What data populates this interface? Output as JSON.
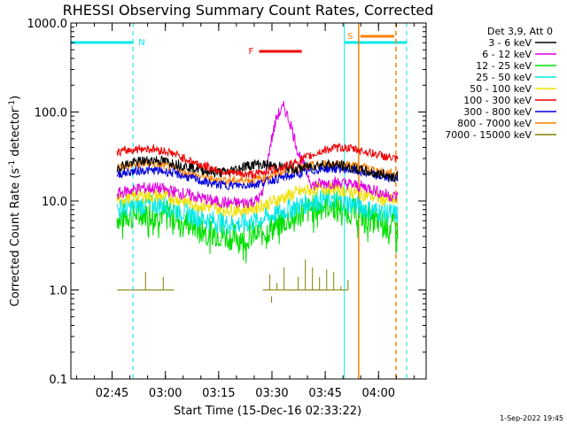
{
  "chart_data": {
    "type": "line",
    "title": "RHESSI Observing Summary Count Rates, Corrected",
    "xlabel": "Start Time (15-Dec-16 02:33:22)",
    "ylabel": "Corrected Count Rate (s-1 detector-1)",
    "ylabel_parts": {
      "main": "Corrected Count Rate (s",
      "sup1": "-1",
      "mid": " detector",
      "sup2": "-1",
      "end": ")"
    },
    "yscale": "log",
    "ylim": [
      0.1,
      1000
    ],
    "xlim_minutes": [
      0,
      100
    ],
    "x_ticks": [
      "02:45",
      "03:00",
      "03:15",
      "03:30",
      "03:45",
      "04:00"
    ],
    "y_ticks": [
      "0.1",
      "1.0",
      "10.0",
      "100.0",
      "1000.0"
    ],
    "legend_header": "Det 3,9, Att 0",
    "footer": "1-Sep-2022 19:45",
    "series": [
      {
        "name": "3 - 6 keV",
        "color": "#000000",
        "x": [
          13,
          16,
          20,
          24,
          28,
          32,
          36,
          40,
          44,
          48,
          52,
          56,
          60,
          64,
          68,
          72,
          76,
          80,
          84,
          86,
          88,
          90,
          92
        ],
        "y": [
          24,
          26,
          28,
          29,
          27,
          25,
          23,
          21,
          21,
          24,
          26,
          25,
          24,
          23,
          25,
          26,
          25,
          23,
          21,
          20,
          20,
          19,
          19
        ]
      },
      {
        "name": "6 - 12 keV",
        "color": "#e000e0",
        "x": [
          13,
          16,
          20,
          24,
          28,
          32,
          36,
          40,
          44,
          48,
          52,
          54,
          56,
          58,
          60,
          62,
          64,
          68,
          72,
          76,
          80,
          84,
          88,
          92
        ],
        "y": [
          12,
          13,
          14,
          14,
          13,
          12,
          11,
          10,
          9.5,
          9.5,
          10,
          12,
          40,
          90,
          115,
          70,
          35,
          15,
          16,
          16,
          15,
          14,
          12,
          11
        ]
      },
      {
        "name": "12 - 25 keV",
        "color": "#00e000",
        "x": [
          13,
          16,
          20,
          24,
          28,
          32,
          36,
          40,
          44,
          48,
          52,
          56,
          60,
          64,
          68,
          72,
          76,
          80,
          84,
          88,
          92
        ],
        "y": [
          6.5,
          7,
          7.5,
          7.5,
          7,
          6,
          5,
          4.5,
          4,
          4,
          4.2,
          4.8,
          6,
          7.2,
          8.2,
          9,
          8.5,
          7.5,
          6.5,
          5.5,
          5
        ]
      },
      {
        "name": "25 - 50 keV",
        "color": "#00e8e8",
        "x": [
          13,
          16,
          20,
          24,
          28,
          32,
          36,
          40,
          44,
          48,
          52,
          56,
          60,
          64,
          68,
          72,
          76,
          80,
          84,
          88,
          92
        ],
        "y": [
          8,
          8.5,
          9,
          9.2,
          8.5,
          7.5,
          6.5,
          6,
          5.5,
          5.5,
          6,
          6.8,
          7.8,
          8.8,
          9.8,
          10.5,
          10,
          9,
          8,
          7.5,
          7
        ]
      },
      {
        "name": "50 - 100 keV",
        "color": "#f0e000",
        "x": [
          13,
          16,
          20,
          24,
          28,
          32,
          36,
          40,
          44,
          48,
          52,
          56,
          60,
          64,
          68,
          72,
          76,
          80,
          84,
          88,
          92
        ],
        "y": [
          10.5,
          11,
          11.5,
          11.5,
          11,
          10,
          9,
          8.5,
          8,
          8,
          8.5,
          9.5,
          11,
          12.5,
          13.5,
          14,
          13.5,
          12.5,
          11.5,
          10.5,
          10
        ]
      },
      {
        "name": "100 - 300 keV",
        "color": "#f00000",
        "x": [
          13,
          16,
          20,
          24,
          28,
          32,
          36,
          40,
          44,
          48,
          52,
          56,
          60,
          64,
          68,
          72,
          76,
          80,
          84,
          88,
          92
        ],
        "y": [
          35,
          37,
          39,
          38,
          35,
          30,
          26,
          23,
          21,
          20,
          20,
          22,
          24,
          28,
          33,
          38,
          40,
          38,
          35,
          32,
          29
        ]
      },
      {
        "name": "300 - 800 keV",
        "color": "#0000e0",
        "x": [
          13,
          16,
          20,
          24,
          28,
          32,
          36,
          40,
          44,
          48,
          52,
          56,
          60,
          64,
          68,
          72,
          76,
          80,
          84,
          88,
          92
        ],
        "y": [
          20,
          21,
          22,
          22,
          21,
          19,
          17,
          15.5,
          15,
          15,
          15.5,
          17,
          18.5,
          20,
          22,
          23,
          23,
          22,
          20,
          18.5,
          17.5
        ]
      },
      {
        "name": "800 - 7000 keV",
        "color": "#ff8000",
        "x": [
          13,
          16,
          20,
          24,
          28,
          32,
          36,
          40,
          44,
          48,
          52,
          56,
          60,
          64,
          68,
          72,
          76,
          80,
          84,
          88,
          92
        ],
        "y": [
          24,
          25,
          26,
          26,
          24,
          21,
          19,
          17.5,
          17,
          17,
          17.5,
          19,
          21,
          23,
          25,
          26,
          26,
          25,
          23,
          21,
          20
        ]
      },
      {
        "name": "7000 - 15000 keV",
        "color": "#808000",
        "x": [
          13,
          18,
          21,
          23,
          26,
          29,
          54,
          56,
          58,
          60,
          62,
          64,
          66,
          68,
          70,
          72,
          74,
          76,
          78
        ],
        "y": [
          1,
          1,
          1.6,
          1,
          1.4,
          1,
          1,
          1.5,
          1.2,
          1.8,
          1,
          1.4,
          2.2,
          1.8,
          1.4,
          1.7,
          1.6,
          1.1,
          1.3
        ]
      }
    ],
    "annotations": {
      "night_label": "N",
      "flare_label": "F",
      "saa_label": "S",
      "night_color": "#00e8e8",
      "flare_color": "#f00000",
      "saa_color": "#ff8000"
    }
  }
}
